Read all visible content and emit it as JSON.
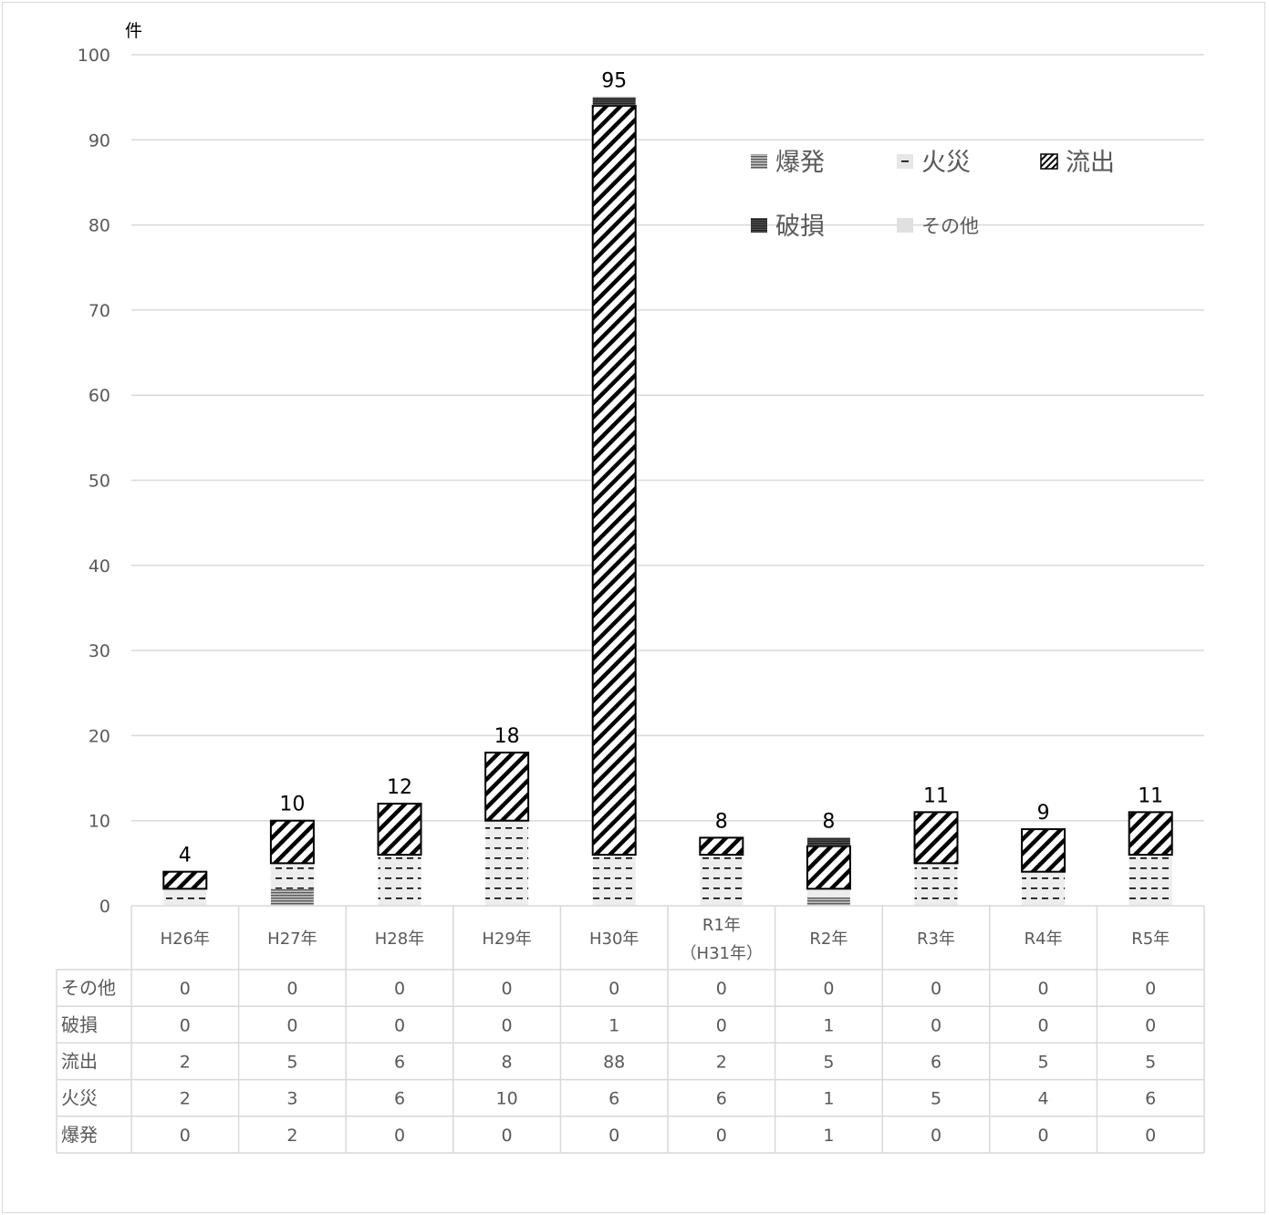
{
  "chart_data": {
    "type": "bar",
    "stacked": true,
    "unit_label": "件",
    "ylim": [
      0,
      100
    ],
    "yticks": [
      0,
      10,
      20,
      30,
      40,
      50,
      60,
      70,
      80,
      90,
      100
    ],
    "grid": true,
    "legend_position": "top-right",
    "categories": [
      "H26年",
      "H27年",
      "H28年",
      "H29年",
      "H30年",
      "R1年（H31年）",
      "R2年",
      "R3年",
      "R4年",
      "R5年"
    ],
    "category_lines": [
      [
        "H26年"
      ],
      [
        "H27年"
      ],
      [
        "H28年"
      ],
      [
        "H29年"
      ],
      [
        "H30年"
      ],
      [
        "R1年",
        "（H31年）"
      ],
      [
        "R2年"
      ],
      [
        "R3年"
      ],
      [
        "R4年"
      ],
      [
        "R5年"
      ]
    ],
    "series": [
      {
        "name": "爆発",
        "values": [
          0,
          2,
          0,
          0,
          0,
          0,
          1,
          0,
          0,
          0
        ],
        "color": "#808080",
        "pattern": "hlines"
      },
      {
        "name": "火災",
        "values": [
          2,
          3,
          6,
          10,
          6,
          6,
          1,
          5,
          4,
          6
        ],
        "color": "#d9d9d9",
        "pattern": "dashes"
      },
      {
        "name": "流出",
        "values": [
          2,
          5,
          6,
          8,
          88,
          2,
          5,
          6,
          5,
          5
        ],
        "color": "#000000",
        "pattern": "diagonal"
      },
      {
        "name": "破損",
        "values": [
          0,
          0,
          0,
          0,
          1,
          0,
          1,
          0,
          0,
          0
        ],
        "color": "#262626",
        "pattern": "dense-hlines"
      },
      {
        "name": "その他",
        "values": [
          0,
          0,
          0,
          0,
          0,
          0,
          0,
          0,
          0,
          0
        ],
        "color": "#d9d9d9",
        "pattern": "solid"
      }
    ],
    "totals": [
      4,
      10,
      12,
      18,
      95,
      8,
      8,
      11,
      9,
      11
    ],
    "table_row_order": [
      "その他",
      "破損",
      "流出",
      "火災",
      "爆発"
    ]
  }
}
